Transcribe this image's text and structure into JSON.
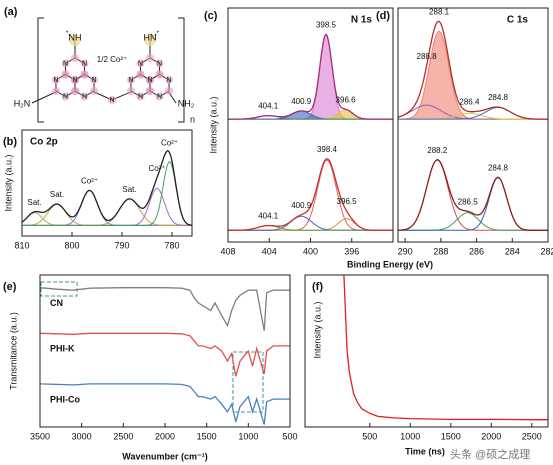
{
  "panel_a": {
    "label": "(a)",
    "top_left": "NH",
    "top_right": "HN",
    "cobalt": "1/2 Co²⁺",
    "left_amine": "H₂N",
    "right_amine": "NH₂",
    "repeat": "n",
    "atoms": [
      "N",
      "N",
      "N",
      "N",
      "N",
      "N",
      "N",
      "N",
      "N",
      "N",
      "N",
      "N",
      "N",
      "N",
      "N"
    ]
  },
  "watermark": "头条 @硕之成理",
  "chart_data": [
    {
      "type": "xps",
      "label": "(b)",
      "title": "Co 2p",
      "ylabel": "Intensity (a.u.)",
      "xlim": [
        810,
        776
      ],
      "xticks": [
        810,
        800,
        790,
        780
      ],
      "ylim": [
        0,
        1
      ],
      "spectra": [
        {
          "baseline": 0.1,
          "color": "#222222",
          "peaks": [
            {
              "center": 807.5,
              "height": 0.12,
              "width": 1.5,
              "color": "#9bb86a",
              "label": "Sat."
            },
            {
              "center": 803,
              "height": 0.2,
              "width": 1.8,
              "color": "#c9a24a",
              "label": "Sat."
            },
            {
              "center": 796.5,
              "height": 0.33,
              "width": 1.6,
              "color": "#5a8fd0",
              "label": "Co²⁺"
            },
            {
              "center": 788.5,
              "height": 0.25,
              "width": 2.0,
              "color": "#d0a040",
              "label": "Sat."
            },
            {
              "center": 783,
              "height": 0.35,
              "width": 1.5,
              "color": "#a070c0",
              "label": "Co²⁺"
            },
            {
              "center": 780.5,
              "height": 0.6,
              "width": 1.3,
              "color": "#40a060",
              "label": "Co²⁺"
            }
          ]
        }
      ]
    },
    {
      "type": "xps",
      "label": "(c)",
      "title": "N 1s",
      "xlabel": "Binding Energy (eV)",
      "ylabel": "Intensity (a.u.)",
      "xlim": [
        408,
        392
      ],
      "xticks": [
        408,
        404,
        400,
        396
      ],
      "ylim": [
        0,
        2
      ],
      "spectra": [
        {
          "baseline": 1.05,
          "color": "#a0307a",
          "peaks": [
            {
              "center": 398.5,
              "height": 0.72,
              "width": 0.6,
              "color": "#d97bd0",
              "filled": true
            },
            {
              "center": 396.6,
              "height": 0.08,
              "width": 0.7,
              "color": "#e8c040",
              "filled": true
            },
            {
              "center": 400.9,
              "height": 0.07,
              "width": 0.9,
              "color": "#4060c0",
              "filled": true
            },
            {
              "center": 404.1,
              "height": 0.03,
              "width": 1.0,
              "color": "#50a050"
            }
          ]
        },
        {
          "baseline": 0.1,
          "color": "#d03030",
          "peaks": [
            {
              "center": 398.4,
              "height": 0.6,
              "width": 0.9,
              "color": "#e06060"
            },
            {
              "center": 396.5,
              "height": 0.1,
              "width": 0.8,
              "color": "#e09040"
            },
            {
              "center": 400.9,
              "height": 0.12,
              "width": 1.0,
              "color": "#4060c0"
            },
            {
              "center": 404.1,
              "height": 0.04,
              "width": 1.0,
              "color": "#50a050"
            }
          ]
        }
      ]
    },
    {
      "type": "xps",
      "label": "(d)",
      "title": "C 1s",
      "xlim": [
        290.4,
        282
      ],
      "xticks": [
        290,
        288,
        286,
        284,
        282
      ],
      "ylim": [
        0,
        2
      ],
      "spectra": [
        {
          "baseline": 1.05,
          "color": "#b03030",
          "peaks": [
            {
              "center": 288.1,
              "height": 0.75,
              "width": 0.55,
              "color": "#f08070",
              "filled": true
            },
            {
              "center": 288.8,
              "height": 0.12,
              "width": 0.8,
              "color": "#9060b0"
            },
            {
              "center": 286.4,
              "height": 0.05,
              "width": 0.7,
              "color": "#e0c040"
            },
            {
              "center": 284.8,
              "height": 0.1,
              "width": 0.7,
              "color": "#4070c0"
            }
          ]
        },
        {
          "baseline": 0.1,
          "color": "#902020",
          "peaks": [
            {
              "center": 288.2,
              "height": 0.6,
              "width": 0.6,
              "color": "#d05050"
            },
            {
              "center": 286.5,
              "height": 0.15,
              "width": 0.6,
              "color": "#40a060"
            },
            {
              "center": 284.8,
              "height": 0.45,
              "width": 0.5,
              "color": "#3060b0"
            }
          ]
        }
      ]
    },
    {
      "type": "line",
      "label": "(e)",
      "xlabel": "Wavenumber (cm⁻¹)",
      "ylabel": "Transmitance (a.u.)",
      "xlim": [
        3500,
        500
      ],
      "xticks": [
        3500,
        3000,
        2500,
        2000,
        1500,
        1000,
        500
      ],
      "ylim": [
        0,
        3
      ],
      "x": [
        3500,
        3300,
        3100,
        3000,
        2900,
        2500,
        2200,
        2000,
        1800,
        1700,
        1650,
        1600,
        1550,
        1450,
        1400,
        1320,
        1250,
        1200,
        1150,
        1100,
        1000,
        950,
        900,
        810,
        780,
        700,
        600,
        500
      ],
      "series": [
        {
          "name": "CN",
          "color": "#808080",
          "values": [
            2.75,
            2.72,
            2.7,
            2.72,
            2.74,
            2.75,
            2.75,
            2.75,
            2.74,
            2.7,
            2.55,
            2.45,
            2.4,
            2.3,
            2.45,
            2.2,
            2.0,
            2.3,
            2.5,
            2.6,
            2.7,
            2.7,
            2.7,
            1.9,
            2.65,
            2.7,
            2.7,
            2.7
          ]
        },
        {
          "name": "PHI-K",
          "color": "#e05050",
          "values": [
            1.85,
            1.84,
            1.83,
            1.84,
            1.85,
            1.85,
            1.85,
            1.85,
            1.84,
            1.8,
            1.7,
            1.6,
            1.6,
            1.55,
            1.6,
            1.5,
            1.3,
            1.45,
            1.0,
            1.3,
            1.5,
            1.2,
            1.55,
            1.05,
            1.5,
            1.6,
            1.6,
            1.6
          ]
        },
        {
          "name": "PHI-Co",
          "color": "#4a80c0",
          "values": [
            0.85,
            0.84,
            0.83,
            0.84,
            0.85,
            0.85,
            0.85,
            0.85,
            0.84,
            0.8,
            0.7,
            0.6,
            0.6,
            0.55,
            0.6,
            0.45,
            0.3,
            0.45,
            0.1,
            0.4,
            0.6,
            0.3,
            0.55,
            0.05,
            0.5,
            0.55,
            0.55,
            0.55
          ]
        }
      ]
    },
    {
      "type": "line",
      "label": "(f)",
      "xlabel": "Time (ns)",
      "ylabel": "Intensity (a.u.)",
      "xlim": [
        -300,
        2700
      ],
      "xticks": [
        500,
        1000,
        1500,
        2000,
        2500
      ],
      "ylim": [
        0,
        1
      ],
      "x": [
        180,
        200,
        220,
        250,
        300,
        350,
        400,
        500,
        600,
        800,
        1000,
        1500,
        2000,
        2500,
        2700
      ],
      "series": [
        {
          "color": "#e02020",
          "values": [
            1.0,
            0.75,
            0.5,
            0.35,
            0.22,
            0.16,
            0.12,
            0.09,
            0.07,
            0.06,
            0.055,
            0.05,
            0.05,
            0.048,
            0.048
          ]
        }
      ]
    }
  ]
}
